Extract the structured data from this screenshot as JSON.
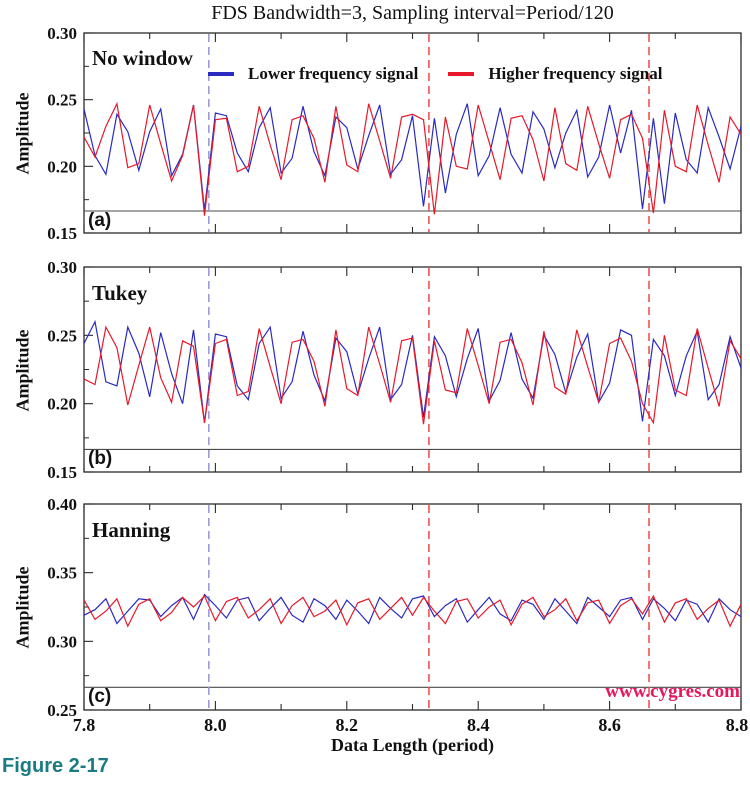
{
  "title": "FDS Bandwidth=3, Sampling interval=Period/120",
  "figure_caption": {
    "text": "Figure 2-17",
    "color": "#1a7c82"
  },
  "watermark": {
    "text": "www.cygres.com",
    "color": "#e8175d"
  },
  "legend": {
    "items": [
      {
        "label": "Lower frequency signal",
        "color": "#2a2ac0"
      },
      {
        "label": "Higher frequency signal",
        "color": "#e6192b"
      }
    ]
  },
  "axes": {
    "x": {
      "label": "Data Length (period)",
      "min": 7.8,
      "max": 8.8,
      "minor_step": 0.1,
      "major_ticks": [
        {
          "value": 7.8,
          "label": "7.8"
        },
        {
          "value": 8.0,
          "label": "8.0"
        },
        {
          "value": 8.2,
          "label": "8.2"
        },
        {
          "value": 8.4,
          "label": "8.4"
        },
        {
          "value": 8.6,
          "label": "8.6"
        },
        {
          "value": 8.8,
          "label": "8.8"
        }
      ]
    }
  },
  "reference_lines": [
    {
      "x": 7.99,
      "color": "#9494d6",
      "style": "dashed"
    },
    {
      "x": 8.325,
      "color": "#ee4747",
      "style": "dashed"
    },
    {
      "x": 8.66,
      "color": "#ee4747",
      "style": "dashed"
    }
  ],
  "chart_data": [
    {
      "type": "line",
      "panel_label": "(a)",
      "window_label": "No window",
      "ylabel": "Amplitude",
      "ylim": [
        0.15,
        0.3
      ],
      "label_strip_y": 0.1665,
      "yticks": [
        {
          "value": 0.15,
          "label": "0.15"
        },
        {
          "value": 0.2,
          "label": "0.20"
        },
        {
          "value": 0.25,
          "label": "0.25"
        },
        {
          "value": 0.3,
          "label": "0.30"
        }
      ],
      "x_start": 7.8,
      "x_step": 0.0166667,
      "series": [
        {
          "name": "Lower frequency signal",
          "color": "#2a2ac0",
          "values": [
            0.243,
            0.208,
            0.194,
            0.239,
            0.226,
            0.197,
            0.226,
            0.243,
            0.193,
            0.209,
            0.246,
            0.167,
            0.24,
            0.238,
            0.21,
            0.196,
            0.229,
            0.244,
            0.195,
            0.206,
            0.245,
            0.211,
            0.193,
            0.237,
            0.229,
            0.198,
            0.223,
            0.246,
            0.194,
            0.205,
            0.238,
            0.17,
            0.236,
            0.18,
            0.224,
            0.247,
            0.193,
            0.208,
            0.244,
            0.209,
            0.195,
            0.241,
            0.228,
            0.199,
            0.225,
            0.242,
            0.192,
            0.207,
            0.246,
            0.21,
            0.242,
            0.168,
            0.236,
            0.172,
            0.24,
            0.205,
            0.195,
            0.244,
            0.222,
            0.198,
            0.23
          ]
        },
        {
          "name": "Higher frequency signal",
          "color": "#e6192b",
          "values": [
            0.222,
            0.207,
            0.23,
            0.247,
            0.199,
            0.202,
            0.246,
            0.217,
            0.189,
            0.208,
            0.246,
            0.163,
            0.235,
            0.236,
            0.196,
            0.2,
            0.245,
            0.216,
            0.19,
            0.235,
            0.238,
            0.221,
            0.188,
            0.245,
            0.201,
            0.196,
            0.247,
            0.219,
            0.191,
            0.237,
            0.239,
            0.235,
            0.164,
            0.237,
            0.2,
            0.198,
            0.246,
            0.218,
            0.19,
            0.236,
            0.238,
            0.22,
            0.189,
            0.244,
            0.202,
            0.197,
            0.245,
            0.217,
            0.191,
            0.235,
            0.239,
            0.221,
            0.165,
            0.242,
            0.2,
            0.196,
            0.246,
            0.216,
            0.188,
            0.237,
            0.224
          ]
        }
      ]
    },
    {
      "type": "line",
      "panel_label": "(b)",
      "window_label": "Tukey",
      "ylabel": "Amplitude",
      "ylim": [
        0.15,
        0.3
      ],
      "label_strip_y": 0.1665,
      "yticks": [
        {
          "value": 0.15,
          "label": "0.15"
        },
        {
          "value": 0.2,
          "label": "0.20"
        },
        {
          "value": 0.25,
          "label": "0.25"
        },
        {
          "value": 0.3,
          "label": "0.30"
        }
      ],
      "x_start": 7.8,
      "x_step": 0.0166667,
      "series": [
        {
          "name": "Lower frequency signal",
          "color": "#2a2ac0",
          "values": [
            0.244,
            0.26,
            0.216,
            0.213,
            0.256,
            0.237,
            0.205,
            0.252,
            0.222,
            0.2,
            0.254,
            0.186,
            0.251,
            0.249,
            0.213,
            0.203,
            0.244,
            0.256,
            0.204,
            0.216,
            0.253,
            0.221,
            0.202,
            0.248,
            0.238,
            0.207,
            0.233,
            0.256,
            0.203,
            0.214,
            0.25,
            0.19,
            0.249,
            0.235,
            0.205,
            0.233,
            0.255,
            0.202,
            0.217,
            0.252,
            0.218,
            0.204,
            0.25,
            0.236,
            0.208,
            0.234,
            0.251,
            0.201,
            0.215,
            0.254,
            0.25,
            0.187,
            0.247,
            0.235,
            0.206,
            0.235,
            0.253,
            0.203,
            0.214,
            0.249,
            0.226
          ]
        },
        {
          "name": "Higher frequency signal",
          "color": "#e6192b",
          "values": [
            0.218,
            0.214,
            0.256,
            0.241,
            0.199,
            0.228,
            0.256,
            0.219,
            0.201,
            0.246,
            0.242,
            0.186,
            0.244,
            0.247,
            0.206,
            0.209,
            0.255,
            0.227,
            0.2,
            0.245,
            0.247,
            0.231,
            0.198,
            0.254,
            0.211,
            0.206,
            0.256,
            0.229,
            0.201,
            0.246,
            0.248,
            0.185,
            0.246,
            0.21,
            0.208,
            0.255,
            0.228,
            0.2,
            0.245,
            0.247,
            0.23,
            0.199,
            0.253,
            0.212,
            0.207,
            0.254,
            0.227,
            0.201,
            0.244,
            0.248,
            0.231,
            0.2,
            0.186,
            0.25,
            0.21,
            0.206,
            0.255,
            0.226,
            0.198,
            0.246,
            0.233
          ]
        }
      ]
    },
    {
      "type": "line",
      "panel_label": "(c)",
      "window_label": "Hanning",
      "ylabel": "Amplitude",
      "ylim": [
        0.25,
        0.4
      ],
      "label_strip_y": 0.2665,
      "yticks": [
        {
          "value": 0.25,
          "label": "0.25"
        },
        {
          "value": 0.3,
          "label": "0.30"
        },
        {
          "value": 0.35,
          "label": "0.35"
        },
        {
          "value": 0.4,
          "label": "0.40"
        }
      ],
      "x_start": 7.8,
      "x_step": 0.0166667,
      "series": [
        {
          "name": "Lower frequency signal",
          "color": "#2a2ac0",
          "values": [
            0.319,
            0.323,
            0.331,
            0.313,
            0.322,
            0.331,
            0.33,
            0.318,
            0.326,
            0.332,
            0.316,
            0.334,
            0.326,
            0.317,
            0.33,
            0.332,
            0.315,
            0.324,
            0.332,
            0.319,
            0.314,
            0.331,
            0.326,
            0.316,
            0.33,
            0.322,
            0.313,
            0.332,
            0.324,
            0.317,
            0.331,
            0.333,
            0.318,
            0.326,
            0.331,
            0.314,
            0.323,
            0.332,
            0.32,
            0.315,
            0.33,
            0.327,
            0.316,
            0.331,
            0.322,
            0.313,
            0.332,
            0.325,
            0.318,
            0.33,
            0.332,
            0.316,
            0.331,
            0.324,
            0.315,
            0.33,
            0.327,
            0.314,
            0.331,
            0.323,
            0.318
          ]
        },
        {
          "name": "Higher frequency signal",
          "color": "#e6192b",
          "values": [
            0.33,
            0.316,
            0.322,
            0.331,
            0.311,
            0.327,
            0.331,
            0.315,
            0.321,
            0.332,
            0.325,
            0.333,
            0.315,
            0.329,
            0.332,
            0.317,
            0.323,
            0.331,
            0.313,
            0.326,
            0.332,
            0.318,
            0.322,
            0.33,
            0.312,
            0.328,
            0.331,
            0.316,
            0.324,
            0.332,
            0.319,
            0.332,
            0.322,
            0.313,
            0.329,
            0.331,
            0.317,
            0.325,
            0.33,
            0.312,
            0.327,
            0.332,
            0.318,
            0.323,
            0.331,
            0.315,
            0.328,
            0.33,
            0.313,
            0.326,
            0.331,
            0.32,
            0.333,
            0.314,
            0.328,
            0.331,
            0.316,
            0.324,
            0.33,
            0.311,
            0.327
          ]
        }
      ]
    }
  ]
}
